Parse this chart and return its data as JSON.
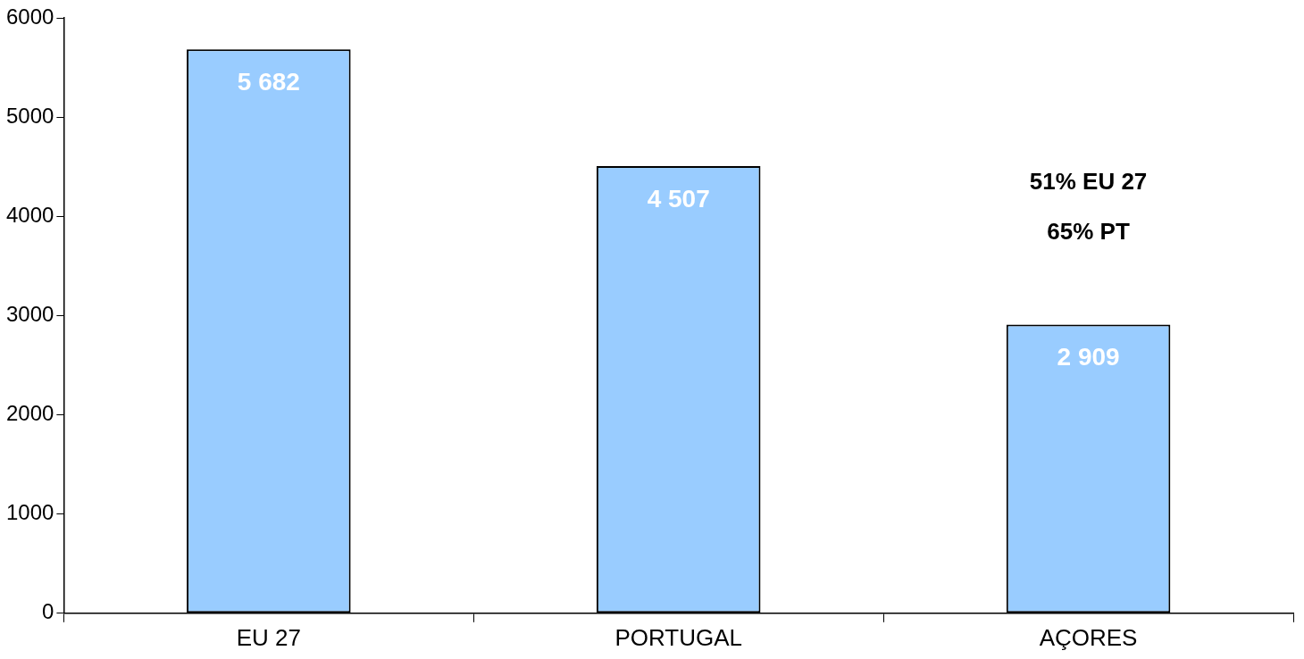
{
  "chart_data": {
    "type": "bar",
    "categories": [
      "EU 27",
      "PORTUGAL",
      "AÇORES"
    ],
    "values": [
      5682,
      4507,
      2909
    ],
    "value_labels": [
      "5 682",
      "4 507",
      "2 909"
    ],
    "color": "#99ccff",
    "ylim": [
      0,
      6000
    ],
    "yticks": [
      0,
      1000,
      2000,
      3000,
      4000,
      5000,
      6000
    ],
    "annotations": [
      "51% EU 27",
      "65% PT"
    ]
  }
}
